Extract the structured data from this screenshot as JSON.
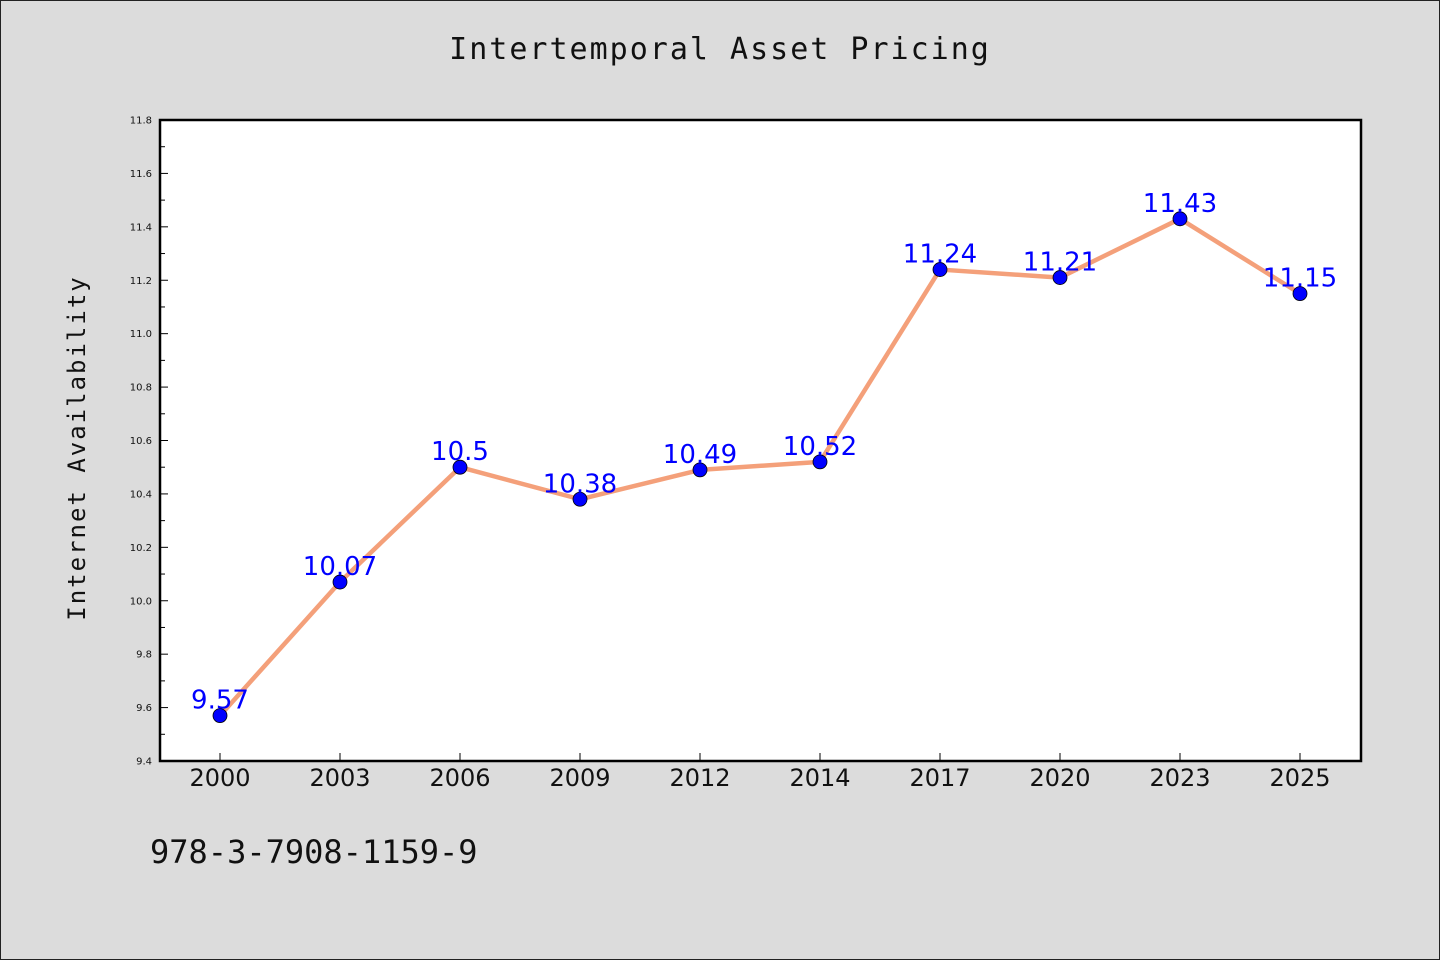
{
  "chart_data": {
    "type": "line",
    "title": "Intertemporal Asset Pricing",
    "xlabel": "",
    "ylabel": "Internet Availability",
    "categories": [
      "2000",
      "2003",
      "2006",
      "2009",
      "2012",
      "2014",
      "2017",
      "2020",
      "2023",
      "2025"
    ],
    "series": [
      {
        "values": [
          9.57,
          10.07,
          10.5,
          10.38,
          10.49,
          10.52,
          11.24,
          11.21,
          11.43,
          11.15
        ],
        "labels": [
          "9.57",
          "10.07",
          "10.5",
          "10.38",
          "10.49",
          "10.52",
          "11.24",
          "11.21",
          "11.43",
          "11.15"
        ],
        "line_color": "#f4a07a",
        "marker_color": "#0000ff"
      }
    ],
    "ylim": [
      9.4,
      11.8
    ],
    "yticks": [
      "9.4",
      "9.6",
      "9.8",
      "10.0",
      "10.2",
      "10.4",
      "10.6",
      "10.8",
      "11.0",
      "11.2",
      "11.4",
      "11.6",
      "11.8"
    ],
    "grid": false,
    "legend": "none"
  },
  "footer": {
    "code": "978-3-7908-1159-9"
  },
  "colors": {
    "background": "#dcdcdc",
    "plot_background": "#ffffff",
    "label_color": "#0000ff"
  }
}
